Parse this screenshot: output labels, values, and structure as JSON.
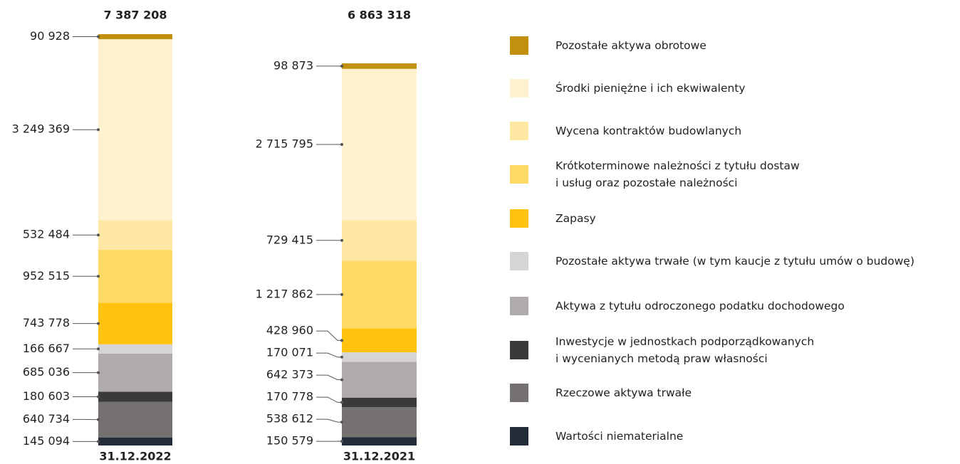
{
  "chart_data": {
    "type": "stacked-bar",
    "categories": [
      "31.12.2022",
      "31.12.2021"
    ],
    "totals": [
      7387208,
      6863318
    ],
    "total_labels": [
      "7 387 208",
      "6 863 318"
    ],
    "series": [
      {
        "name": "Pozostałe aktywa obrotowe",
        "color": "#c0900e",
        "values": [
          90928,
          98873
        ],
        "value_labels": [
          "90 928",
          "98 873"
        ]
      },
      {
        "name": "Środki pieniężne i ich ekwiwalenty",
        "color": "#fff3cf",
        "values": [
          3249369,
          2715795
        ],
        "value_labels": [
          "3 249 369",
          "2 715 795"
        ]
      },
      {
        "name": "Wycena kontraktów budowlanych",
        "color": "#ffe8a3",
        "values": [
          532484,
          729415
        ],
        "value_labels": [
          "532 484",
          "729 415"
        ]
      },
      {
        "name": "Krótkoterminowe należności z tytułu dostaw\ni usług oraz pozostałe należności",
        "color": "#ffd966",
        "values": [
          952515,
          1217862
        ],
        "value_labels": [
          "952 515",
          "1 217 862"
        ]
      },
      {
        "name": "Zapasy",
        "color": "#ffc20e",
        "values": [
          743778,
          428960
        ],
        "value_labels": [
          "743 778",
          "428 960"
        ]
      },
      {
        "name": "Pozostałe aktywa trwałe (w tym kaucje z tytułu umów o budowę)",
        "color": "#d6d4d4",
        "values": [
          166667,
          170071
        ],
        "value_labels": [
          "166 667",
          "170 071"
        ]
      },
      {
        "name": "Aktywa z tytułu odroczonego podatku dochodowego",
        "color": "#afabab",
        "values": [
          685036,
          642373
        ],
        "value_labels": [
          "685 036",
          "642 373"
        ]
      },
      {
        "name": "Inwestycje w jednostkach podporządkowanych\ni wycenianych metodą praw własności",
        "color": "#3b3a3a",
        "values": [
          180603,
          170778
        ],
        "value_labels": [
          "180 603",
          "170 778"
        ]
      },
      {
        "name": "Rzeczowe aktywa trwałe",
        "color": "#767171",
        "values": [
          640734,
          538612
        ],
        "value_labels": [
          "640 734",
          "538 612"
        ]
      },
      {
        "name": "Wartości niematerialne",
        "color": "#232a38",
        "values": [
          145094,
          150579
        ],
        "value_labels": [
          "145 094",
          "150 579"
        ]
      }
    ]
  }
}
